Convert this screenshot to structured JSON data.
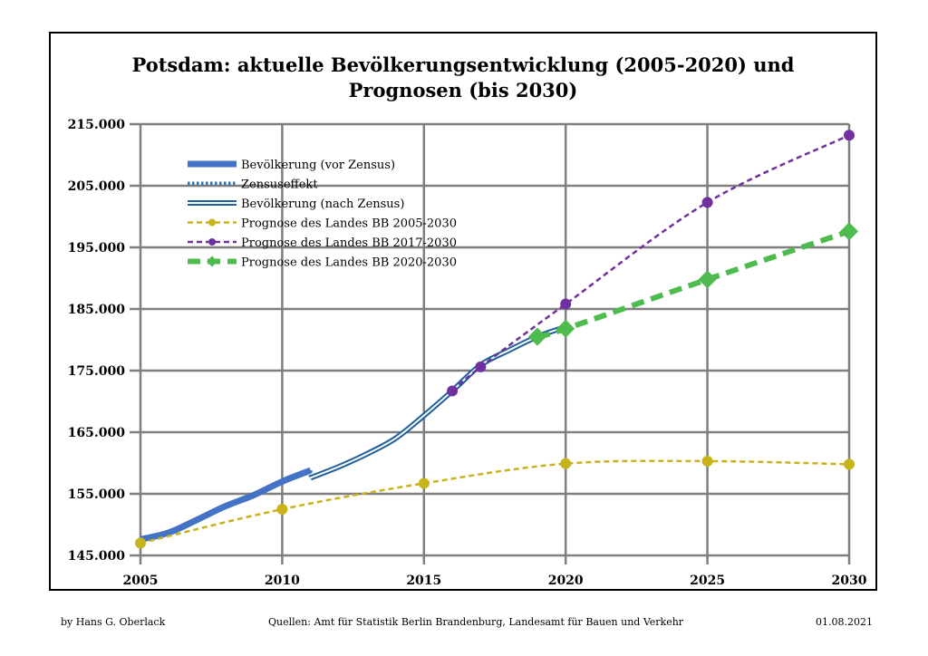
{
  "chart_data": {
    "type": "line",
    "title": "Potsdam:  aktuelle Bevölkerungsentwicklung (2005-2020) und",
    "subtitle": "Prognosen (bis 2030)",
    "xlabel": "",
    "ylabel": "",
    "xlim": [
      2005,
      2030
    ],
    "ylim": [
      145000,
      215000
    ],
    "grid": true,
    "legend_position": "top-left",
    "x_ticks": [
      "2005",
      "2010",
      "2015",
      "2020",
      "2025",
      "2030"
    ],
    "y_ticks": [
      "215.000",
      "205.000",
      "195.000",
      "185.000",
      "175.000",
      "165.000",
      "155.000",
      "145.000"
    ],
    "series": [
      {
        "name": "Bevölkerung (vor Zensus)",
        "color": "#4472c4",
        "style": "thick-solid",
        "x": [
          2005,
          2006,
          2007,
          2008,
          2009,
          2010,
          2011
        ],
        "y": [
          147600,
          148700,
          150800,
          153000,
          154800,
          157000,
          158800
        ]
      },
      {
        "name": "Zensuseffekt",
        "color": "#2e75b6",
        "style": "dotted",
        "x": [
          2011,
          2011
        ],
        "y": [
          158800,
          157600
        ]
      },
      {
        "name": "Bevölkerung (nach Zensus)",
        "color": "#1f5f9e",
        "style": "double-line",
        "x": [
          2011,
          2012,
          2013,
          2014,
          2015,
          2016,
          2017,
          2018,
          2019,
          2020
        ],
        "y": [
          157600,
          159400,
          161500,
          164000,
          167700,
          171700,
          175900,
          178300,
          180500,
          182100
        ]
      },
      {
        "name": "Prognose des Landes BB 2005-2030",
        "color": "#c9b31a",
        "style": "dashed-circle",
        "x": [
          2005,
          2010,
          2015,
          2020,
          2025,
          2030
        ],
        "y": [
          147000,
          152500,
          156700,
          159900,
          160300,
          159800
        ]
      },
      {
        "name": "Prognose des Landes BB 2017-2030",
        "color": "#7030a0",
        "style": "dashed-circle",
        "x": [
          2016,
          2017,
          2020,
          2025,
          2030
        ],
        "y": [
          171700,
          175600,
          185800,
          202300,
          213200
        ]
      },
      {
        "name": "Prognose des Landes BB 2020-2030",
        "color": "#4dbb4d",
        "style": "thick-dashed-diamond",
        "x": [
          2019,
          2020,
          2025,
          2030
        ],
        "y": [
          180500,
          181800,
          189800,
          197600
        ]
      }
    ]
  },
  "footer": {
    "author": "by Hans G. Oberlack",
    "sources": "Quellen: Amt für Statistik Berlin Brandenburg, Landesamt für Bauen und Verkehr",
    "date": "01.08.2021"
  }
}
